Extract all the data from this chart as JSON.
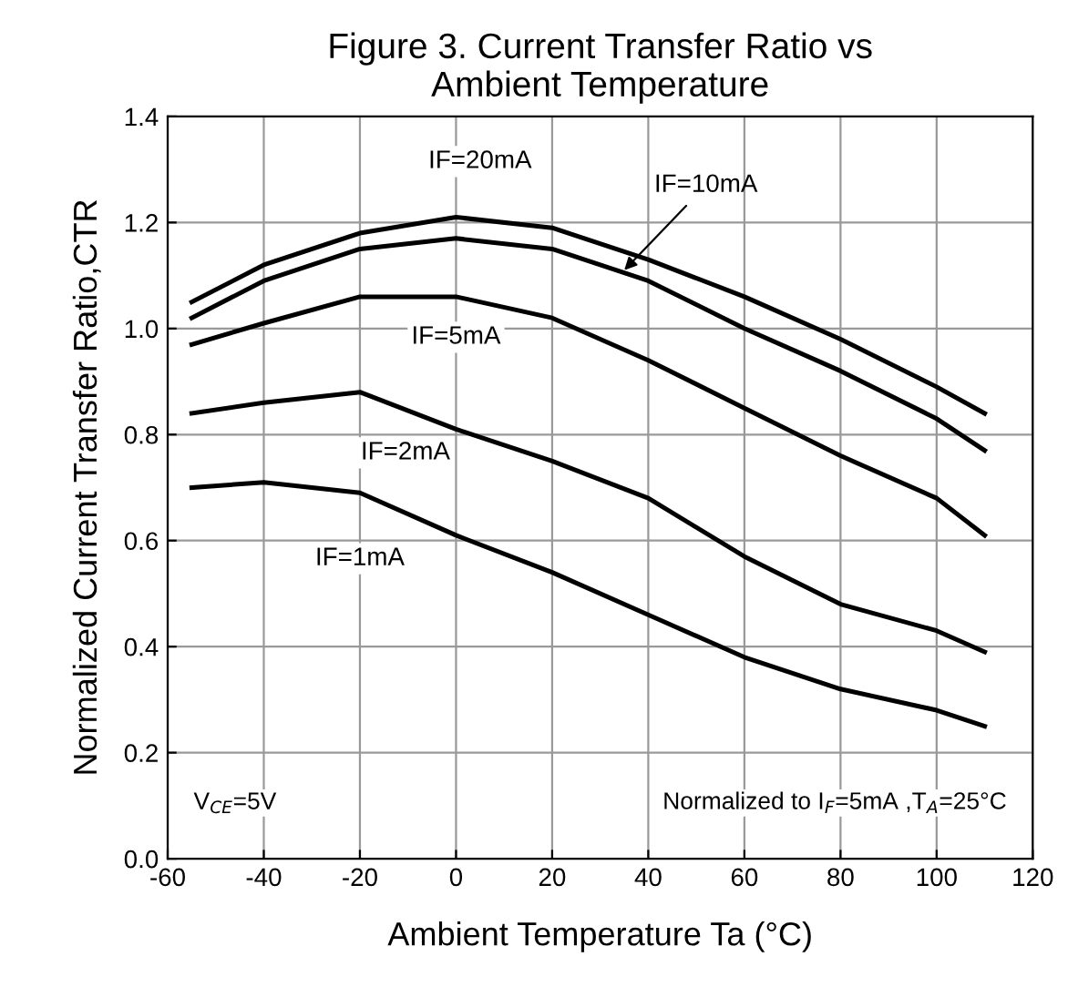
{
  "chart_data": {
    "type": "line",
    "title": "Figure 3. Current Transfer Ratio vs\nAmbient Temperature",
    "xlabel": "Ambient Temperature Ta (°C)",
    "ylabel": "Normalized Current Transfer Ratio,CTR",
    "x": [
      -55,
      -40,
      -20,
      0,
      20,
      40,
      60,
      80,
      100,
      110
    ],
    "series": [
      {
        "color": "#000000",
        "values": [
          1.05,
          1.12,
          1.18,
          1.21,
          1.19,
          1.13,
          1.06,
          0.98,
          0.89,
          0.84
        ]
      },
      {
        "color": "#000000",
        "values": [
          1.02,
          1.09,
          1.15,
          1.17,
          1.15,
          1.09,
          1.0,
          0.92,
          0.83,
          0.77
        ]
      },
      {
        "color": "#000000",
        "values": [
          0.97,
          1.01,
          1.06,
          1.06,
          1.02,
          0.94,
          0.85,
          0.76,
          0.68,
          0.61
        ]
      },
      {
        "color": "#000000",
        "values": [
          0.84,
          0.86,
          0.88,
          0.81,
          0.75,
          0.68,
          0.57,
          0.48,
          0.43,
          0.39
        ]
      },
      {
        "color": "#000000",
        "values": [
          0.7,
          0.71,
          0.69,
          0.61,
          0.54,
          0.46,
          0.38,
          0.32,
          0.28,
          0.25
        ]
      }
    ],
    "xlim": [
      -60,
      120
    ],
    "xticks": [
      -60,
      -40,
      -20,
      0,
      20,
      40,
      60,
      80,
      100,
      120
    ],
    "ylim": [
      0,
      1.4
    ],
    "yticks": [
      {
        "value": 0,
        "label": "0.0"
      },
      0.2,
      0.4,
      0.6,
      0.8,
      {
        "value": 1.0,
        "label": "1.0"
      },
      1.2,
      1.4
    ],
    "grid": true,
    "marker": "none",
    "line_style": "solid",
    "annotations": [
      {
        "text": "IF=20mA",
        "x": 5,
        "y": 1.21
      },
      {
        "text": "IF=10mA",
        "x": 35,
        "y": 1.11
      },
      {
        "text": "IF=5mA",
        "x": 0,
        "y": 1.06
      },
      {
        "text": "IF=2mA",
        "x": -20,
        "y": 0.88
      },
      {
        "text": "IF=1mA",
        "x": -20,
        "y": 0.69
      },
      "V$_{CE}$=5V",
      "Normalized to I$_{F}$=5mA ,T$_{A}$=25°C"
    ]
  }
}
